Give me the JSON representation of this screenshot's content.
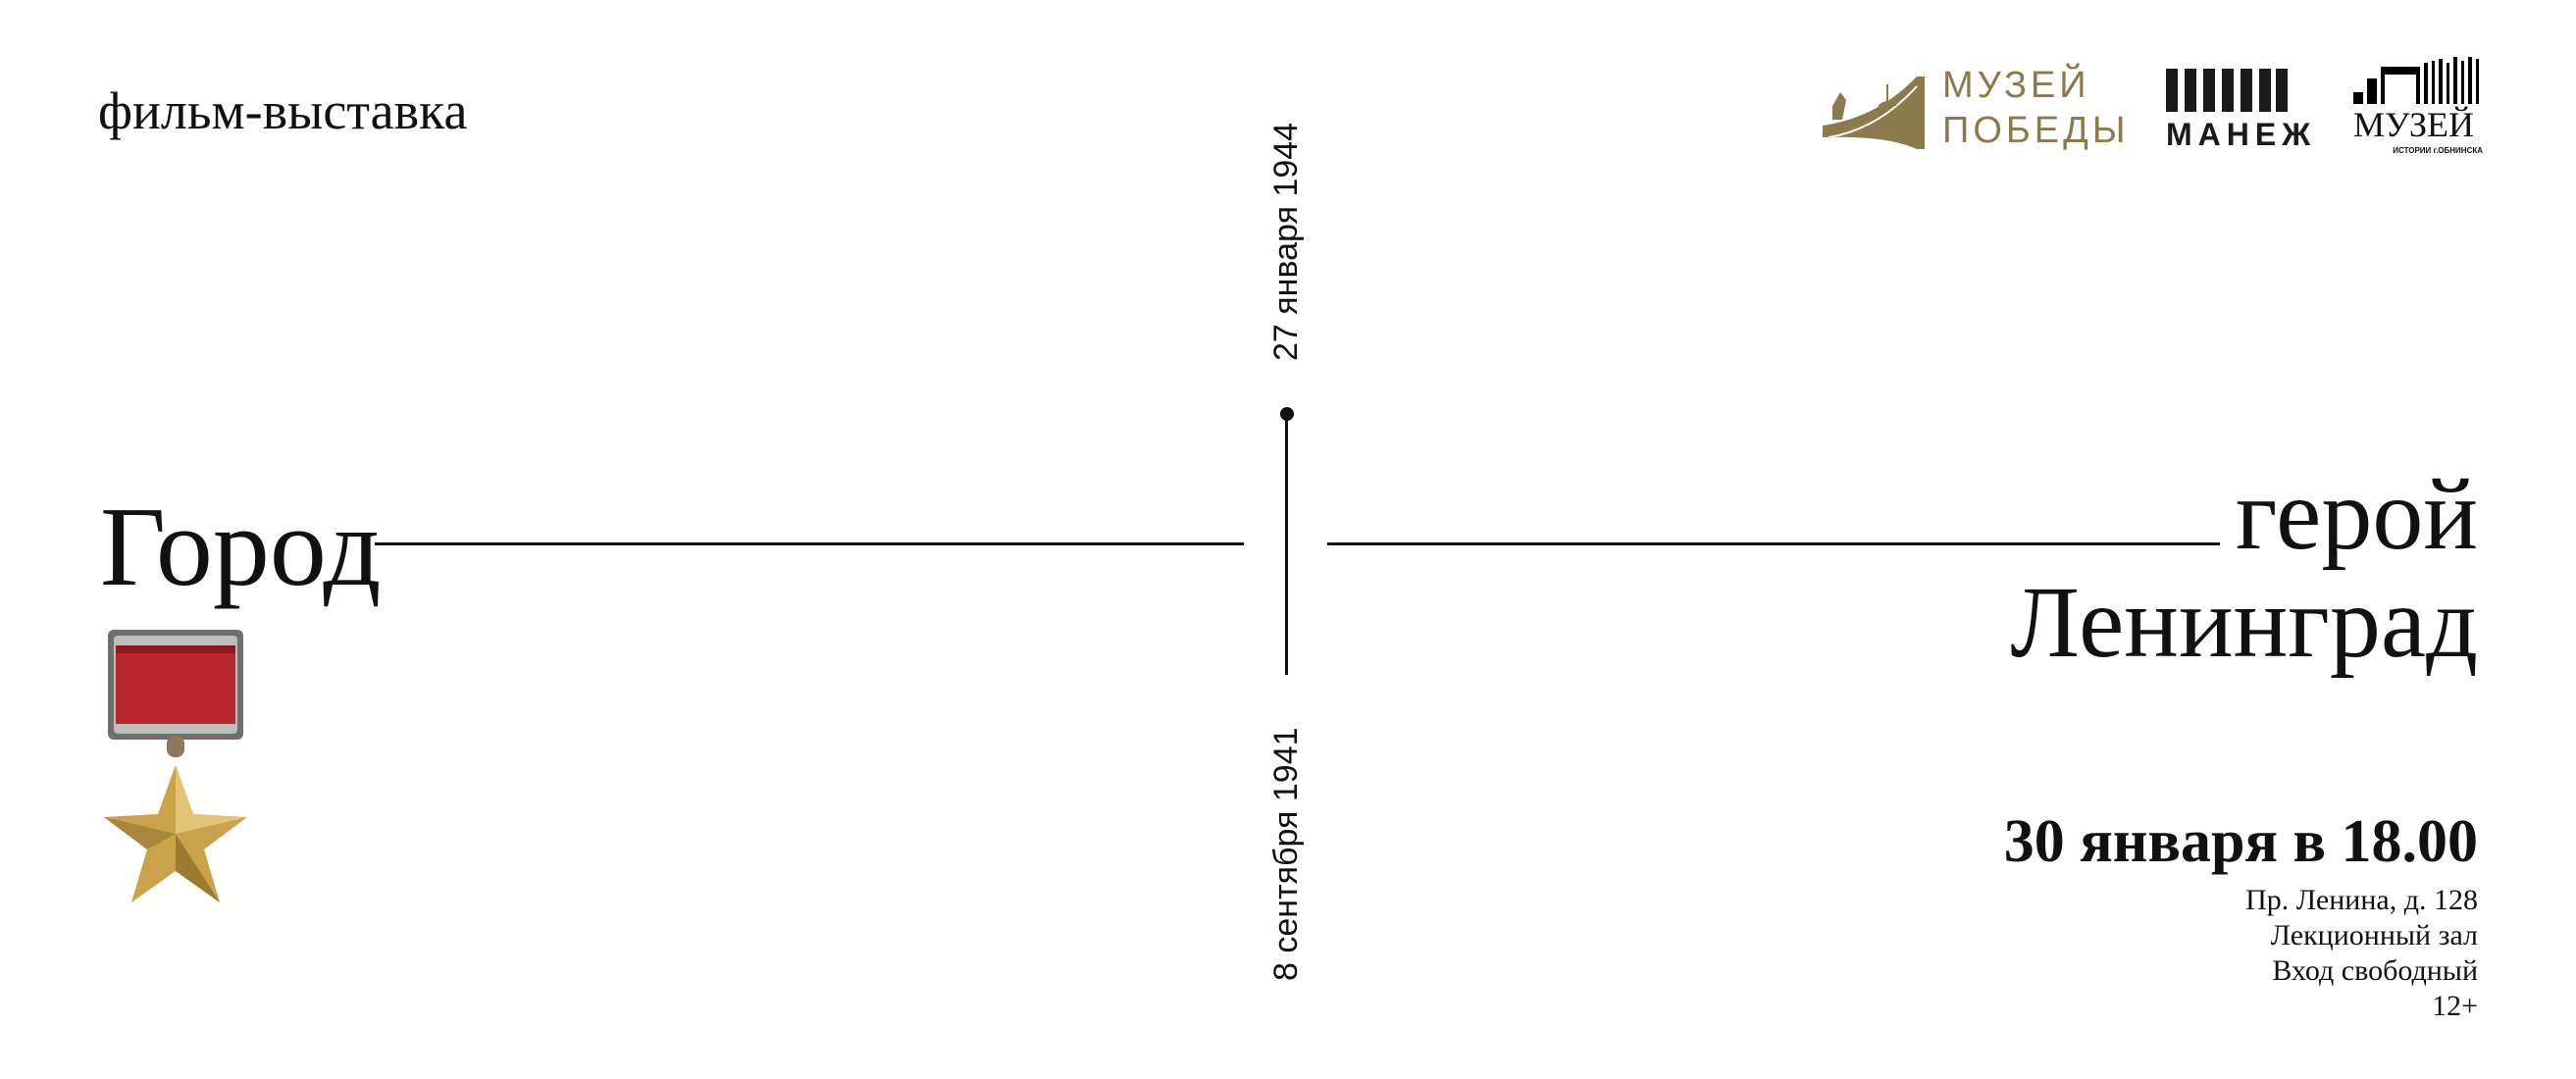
{
  "header": {
    "subtitle": "фильм-выставка"
  },
  "title": {
    "left": "Город",
    "right_line1": "герой",
    "right_line2": "Ленинград"
  },
  "timeline": {
    "end_date": "27 января 1944",
    "start_date": "8 сентября 1941"
  },
  "event": {
    "date_time": "30 января в 18.00",
    "address": "Пр. Ленина, д. 128",
    "hall": "Лекционный зал",
    "entry": "Вход свободный",
    "age_rating": "12+"
  },
  "logos": [
    {
      "name": "МУЗЕЙ ПОБЕДЫ",
      "line1": "МУЗЕЙ",
      "line2": "ПОБЕДЫ",
      "color": "#8b7a4c"
    },
    {
      "name": "МАНЕЖ",
      "color": "#1a1a1a"
    },
    {
      "name": "МУЗЕЙ ИСТОРИИ г.ОБНИНСКА",
      "line1": "МУЗЕЙ",
      "line2": "ИСТОРИИ г.ОБНИНСКА",
      "color": "#000000"
    }
  ],
  "colors": {
    "text": "#111111",
    "ribbon": "#b8262a",
    "gold": "#c9a24a"
  }
}
